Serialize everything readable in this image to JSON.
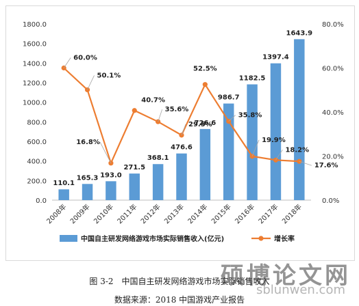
{
  "chart_data": {
    "type": "bar+line",
    "categories": [
      "2008年",
      "2009年",
      "2010年",
      "2011年",
      "2012年",
      "2013年",
      "2014年",
      "2015年",
      "2016年",
      "2017年",
      "2018年"
    ],
    "series": [
      {
        "name": "中国自主研发网络游戏市场实际销售收入(亿元)",
        "type": "bar",
        "axis": "left",
        "color": "#5b9bd5",
        "values": [
          110.1,
          165.3,
          193.0,
          271.5,
          368.1,
          476.6,
          726.6,
          986.7,
          1182.5,
          1397.4,
          1643.9
        ],
        "labels": [
          "110.1",
          "165.3",
          "193.0",
          "271.5",
          "368.1",
          "476.6",
          "726.6",
          "986.7",
          "1182.5",
          "1397.4",
          "1643.9"
        ]
      },
      {
        "name": "增长率",
        "type": "line",
        "axis": "right",
        "color": "#ed7d31",
        "values": [
          60.0,
          50.1,
          16.8,
          40.7,
          35.6,
          29.5,
          52.5,
          35.8,
          19.9,
          18.2,
          17.6
        ],
        "labels": [
          "60.0%",
          "50.1%",
          "16.8%",
          "40.7%",
          "35.6%",
          "29.5%",
          "52.5%",
          "35.8%",
          "19.9%",
          "18.2%",
          "17.6%"
        ]
      }
    ],
    "y_left": {
      "min": 0,
      "max": 1800,
      "ticks": [
        "0.0",
        "200.0",
        "400.0",
        "600.0",
        "800.0",
        "1000.0",
        "1200.0",
        "1400.0",
        "1600.0",
        "1800.0"
      ]
    },
    "y_right": {
      "min": 0,
      "max": 80,
      "ticks": [
        "0.0%",
        "20.0%",
        "40.0%",
        "60.0%",
        "80.0%"
      ]
    },
    "grid": false,
    "legend_position": "bottom"
  },
  "caption": {
    "figure": "图 3-2　中国自主研发网络游戏市场实际销售收入",
    "source": "数据来源：2018 中国游戏产业报告"
  },
  "watermark": {
    "cn": "硕博论文网",
    "en": "sblunwen.com"
  }
}
